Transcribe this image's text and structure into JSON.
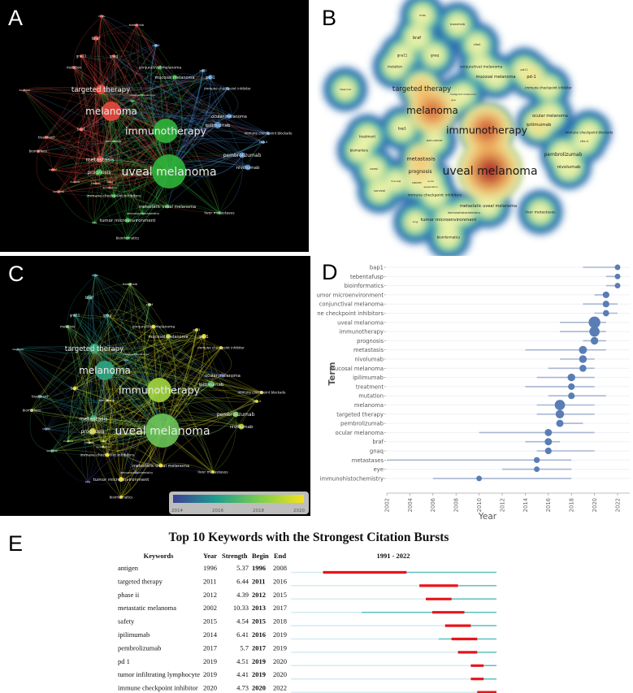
{
  "panels": {
    "a": "A",
    "b": "B",
    "c": "C",
    "d": "D",
    "e": "E"
  },
  "network": {
    "cluster_colors": {
      "red": "#e8483e",
      "green": "#2fb53a",
      "blue": "#4a95e0"
    },
    "nodes": [
      {
        "label": "nras",
        "cluster": "red",
        "avg_year": 2015.5
      },
      {
        "label": "trametinib",
        "cluster": "red",
        "avg_year": 2017.5
      },
      {
        "label": "braf",
        "cluster": "red",
        "avg_year": 2015.5
      },
      {
        "label": "gna11",
        "cluster": "red",
        "avg_year": 2016
      },
      {
        "label": "gnaq",
        "cluster": "red",
        "avg_year": 2016
      },
      {
        "label": "mutation",
        "cluster": "red",
        "avg_year": 2017.5
      },
      {
        "label": "ctla4",
        "cluster": "blue",
        "avg_year": 2018
      },
      {
        "label": "conjunctival melanoma",
        "cluster": "green",
        "avg_year": 2020.5
      },
      {
        "label": "mucosal melanoma",
        "cluster": "green",
        "avg_year": 2019
      },
      {
        "label": "pd-l1",
        "cluster": "blue",
        "avg_year": 2019.5
      },
      {
        "label": "pd-1",
        "cluster": "blue",
        "avg_year": 2020
      },
      {
        "label": "immune checkpoint inhibitor",
        "cluster": "blue",
        "avg_year": 2020
      },
      {
        "label": "diagnosis",
        "cluster": "red",
        "avg_year": 2015.5
      },
      {
        "label": "targeted therapy",
        "cluster": "red",
        "avg_year": 2016.5
      },
      {
        "label": "malignant melanoma",
        "cluster": "green",
        "avg_year": 2016
      },
      {
        "label": "eye",
        "cluster": "green",
        "avg_year": 2015
      },
      {
        "label": "melanoma",
        "cluster": "red",
        "avg_year": 2016.3
      },
      {
        "label": "ocular melanoma",
        "cluster": "blue",
        "avg_year": 2014
      },
      {
        "label": "ipilimumab",
        "cluster": "blue",
        "avg_year": 2017.3
      },
      {
        "label": "immunotherapy",
        "cluster": "green",
        "avg_year": 2018.6
      },
      {
        "label": "immune checkpoint blockade",
        "cluster": "blue",
        "avg_year": 2020
      },
      {
        "label": "ctla-4",
        "cluster": "blue",
        "avg_year": 2019.5
      },
      {
        "label": "bap1",
        "cluster": "red",
        "avg_year": 2020.5
      },
      {
        "label": "treatment",
        "cluster": "red",
        "avg_year": 2016
      },
      {
        "label": "pan-cancer",
        "cluster": "green",
        "avg_year": 2019.5
      },
      {
        "label": "biomarkers",
        "cluster": "red",
        "avg_year": 2018.5
      },
      {
        "label": "metastasis",
        "cluster": "red",
        "avg_year": 2016.8
      },
      {
        "label": "pembrolizumab",
        "cluster": "blue",
        "avg_year": 2017.8
      },
      {
        "label": "uveal melanoma",
        "cluster": "green",
        "avg_year": 2017.6
      },
      {
        "label": "nivolumab",
        "cluster": "blue",
        "avg_year": 2019
      },
      {
        "label": "uveal",
        "cluster": "red",
        "avg_year": 2014.5
      },
      {
        "label": "prognosis",
        "cluster": "green",
        "avg_year": 2019.5
      },
      {
        "label": "mucosal",
        "cluster": "red",
        "avg_year": 2018
      },
      {
        "label": "cancer",
        "cluster": "red",
        "avg_year": 2019
      },
      {
        "label": "acral",
        "cluster": "red",
        "avg_year": 2019.5
      },
      {
        "label": "epigenetics",
        "cluster": "red",
        "avg_year": 2019
      },
      {
        "label": "survival",
        "cluster": "red",
        "avg_year": 2016.5
      },
      {
        "label": "immune checkpoint inhibitors",
        "cluster": "green",
        "avg_year": 2020
      },
      {
        "label": "metastatic uveal melanoma",
        "cluster": "green",
        "avg_year": 2020
      },
      {
        "label": "immunohistochemistry",
        "cluster": "green",
        "avg_year": 2014
      },
      {
        "label": "liver metastases",
        "cluster": "green",
        "avg_year": 2019.5
      },
      {
        "label": "tumor microenvironment",
        "cluster": "green",
        "avg_year": 2020.5
      },
      {
        "label": "bioinformatics",
        "cluster": "green",
        "avg_year": 2020.5
      },
      {
        "label": "lung",
        "cluster": "green",
        "avg_year": 2014
      }
    ],
    "colorbar": {
      "ticks": [
        "2014",
        "2016",
        "2018",
        "2020"
      ],
      "colors": [
        "#3d3f96",
        "#1f9e8e",
        "#7dcf4d",
        "#f6e21c"
      ]
    }
  },
  "chart_data": [
    {
      "type": "scatter",
      "panel": "D",
      "xlabel": "Year",
      "ylabel": "Term",
      "xlim": [
        2002,
        2023
      ],
      "xticks": [
        "2002",
        "2004",
        "2006",
        "2008",
        "2010",
        "2012",
        "2014",
        "2016",
        "2018",
        "2020",
        "2022"
      ],
      "grid": true,
      "terms": [
        {
          "term": "bap1",
          "start": 2019,
          "end": 2022,
          "median": 2022,
          "weight": 1
        },
        {
          "term": "tebentafusp",
          "start": 2021,
          "end": 2022,
          "median": 2022,
          "weight": 1
        },
        {
          "term": "bioinformatics",
          "start": 2021,
          "end": 2022,
          "median": 2022,
          "weight": 1
        },
        {
          "term": "tumor microenvironment",
          "start": 2020,
          "end": 2021.3,
          "median": 2021,
          "weight": 1.5
        },
        {
          "term": "conjunctival melanoma",
          "start": 2019,
          "end": 2022,
          "median": 2021,
          "weight": 1.5
        },
        {
          "term": "immune checkpoint inhibitors",
          "start": 2020,
          "end": 2022,
          "median": 2021,
          "weight": 1.3
        },
        {
          "term": "uveal melanoma",
          "start": 2017,
          "end": 2021,
          "median": 2020,
          "weight": 4
        },
        {
          "term": "immunotherapy",
          "start": 2017,
          "end": 2021,
          "median": 2020,
          "weight": 3.3
        },
        {
          "term": "prognosis",
          "start": 2019,
          "end": 2021,
          "median": 2020,
          "weight": 2
        },
        {
          "term": "metastasis",
          "start": 2014,
          "end": 2021,
          "median": 2019,
          "weight": 2.2
        },
        {
          "term": "nivolumab",
          "start": 2017,
          "end": 2020,
          "median": 2019,
          "weight": 2
        },
        {
          "term": "mucosal melanoma",
          "start": 2016,
          "end": 2020,
          "median": 2019,
          "weight": 1.7
        },
        {
          "term": "ipilimumab",
          "start": 2015,
          "end": 2020,
          "median": 2018,
          "weight": 2
        },
        {
          "term": "treatment",
          "start": 2014,
          "end": 2020,
          "median": 2018,
          "weight": 1.5
        },
        {
          "term": "mutation",
          "start": 2016,
          "end": 2021,
          "median": 2018,
          "weight": 1.5
        },
        {
          "term": "melanoma",
          "start": 2015,
          "end": 2020,
          "median": 2017,
          "weight": 3.3
        },
        {
          "term": "targeted therapy",
          "start": 2015,
          "end": 2020,
          "median": 2017,
          "weight": 2.4
        },
        {
          "term": "pembrolizumab",
          "start": 2017,
          "end": 2019,
          "median": 2017,
          "weight": 1.8
        },
        {
          "term": "ocular melanoma",
          "start": 2010,
          "end": 2020,
          "median": 2016,
          "weight": 1.8
        },
        {
          "term": "braf",
          "start": 2014,
          "end": 2017,
          "median": 2016,
          "weight": 1.8
        },
        {
          "term": "gnaq",
          "start": 2015,
          "end": 2020,
          "median": 2016,
          "weight": 1.5
        },
        {
          "term": "metastases",
          "start": 2002,
          "end": 2018,
          "median": 2015,
          "weight": 1.2
        },
        {
          "term": "eye",
          "start": 2012,
          "end": 2018,
          "median": 2015,
          "weight": 1
        },
        {
          "term": "immunohistochemistry",
          "start": 2006,
          "end": 2018,
          "median": 2010,
          "weight": 1
        }
      ]
    },
    {
      "type": "table",
      "panel": "E",
      "title": "Top 10 Keywords with the Strongest Citation Bursts",
      "columns": [
        "Keywords",
        "Year",
        "Strength",
        "Begin",
        "End",
        "1991 - 2022"
      ],
      "range": [
        1991,
        2022
      ],
      "colors": {
        "burst": "#e8141b",
        "active": "#5cbfc0",
        "inactive": "#d3ecef"
      },
      "rows": [
        {
          "keyword": "antigen",
          "year": "1996",
          "strength": "5.37",
          "begin": "1996",
          "end": "2008"
        },
        {
          "keyword": "targeted therapy",
          "year": "2011",
          "strength": "6.44",
          "begin": "2011",
          "end": "2016"
        },
        {
          "keyword": "phase ii",
          "year": "2012",
          "strength": "4.39",
          "begin": "2012",
          "end": "2015"
        },
        {
          "keyword": "metastatic melanoma",
          "year": "2002",
          "strength": "10.33",
          "begin": "2013",
          "end": "2017"
        },
        {
          "keyword": "safety",
          "year": "2015",
          "strength": "4.54",
          "begin": "2015",
          "end": "2018"
        },
        {
          "keyword": "ipilimumab",
          "year": "2014",
          "strength": "6.41",
          "begin": "2016",
          "end": "2019"
        },
        {
          "keyword": "pembrolizumab",
          "year": "2017",
          "strength": "5.7",
          "begin": "2017",
          "end": "2019"
        },
        {
          "keyword": "pd 1",
          "year": "2019",
          "strength": "4.51",
          "begin": "2019",
          "end": "2020"
        },
        {
          "keyword": "tumor infiltrating lymphocyte",
          "year": "2019",
          "strength": "4.41",
          "begin": "2019",
          "end": "2020"
        },
        {
          "keyword": "immune checkpoint inhibitor",
          "year": "2020",
          "strength": "4.73",
          "begin": "2020",
          "end": "2022"
        }
      ]
    }
  ]
}
